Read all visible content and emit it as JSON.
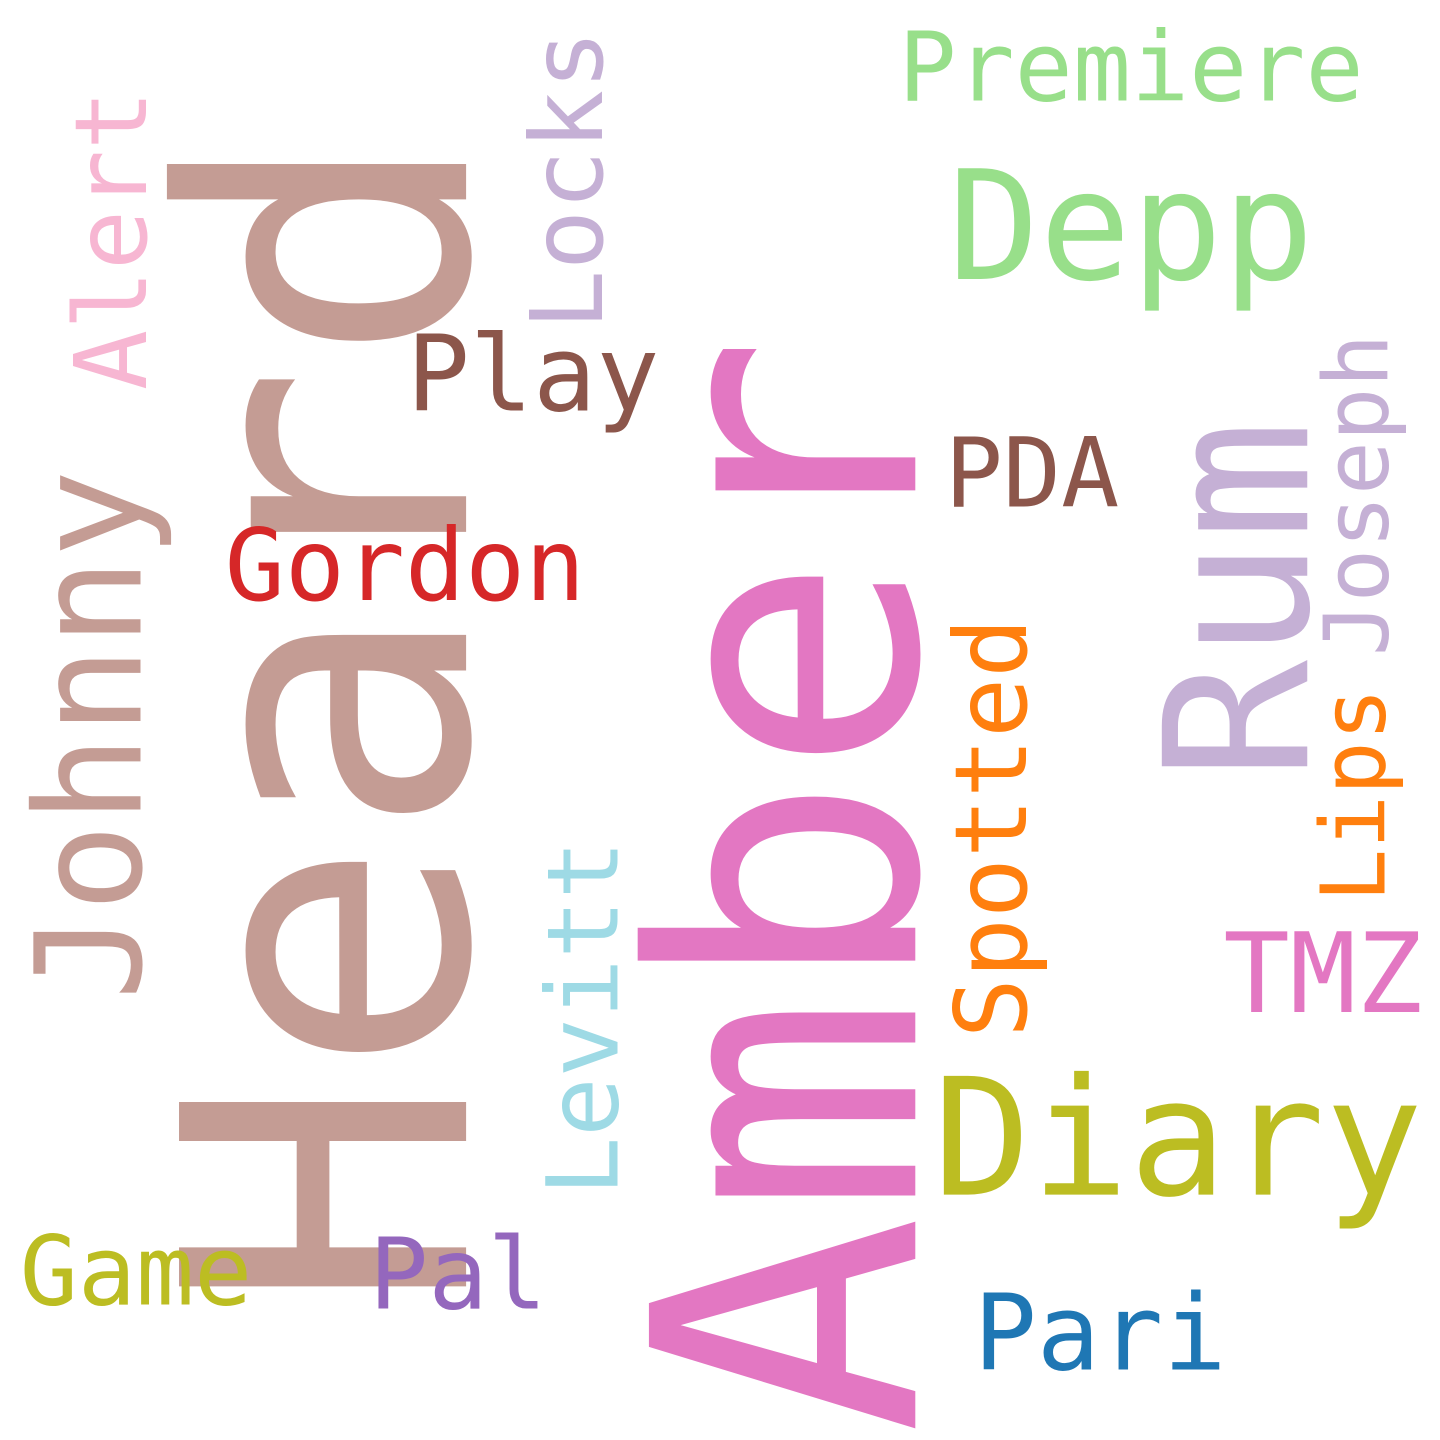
{
  "words": [
    {
      "id": "heard",
      "text": "Heard",
      "color": "#c49c94",
      "orientation": "vertical"
    },
    {
      "id": "amber",
      "text": "Amber",
      "color": "#e377c2",
      "orientation": "vertical"
    },
    {
      "id": "rum",
      "text": "Rum",
      "color": "#c5b0d5",
      "orientation": "vertical"
    },
    {
      "id": "johnny",
      "text": "Johnny",
      "color": "#c49c94",
      "orientation": "vertical"
    },
    {
      "id": "alert",
      "text": "Alert",
      "color": "#f7b6d2",
      "orientation": "vertical"
    },
    {
      "id": "locks",
      "text": "Locks",
      "color": "#c5b0d5",
      "orientation": "vertical"
    },
    {
      "id": "premiere",
      "text": "Premiere",
      "color": "#98df8a",
      "orientation": "horizontal"
    },
    {
      "id": "depp",
      "text": "Depp",
      "color": "#98df8a",
      "orientation": "horizontal"
    },
    {
      "id": "play",
      "text": "Play",
      "color": "#8c564b",
      "orientation": "horizontal"
    },
    {
      "id": "pda",
      "text": "PDA",
      "color": "#8c564b",
      "orientation": "horizontal"
    },
    {
      "id": "joseph",
      "text": "Joseph",
      "color": "#c5b0d5",
      "orientation": "vertical"
    },
    {
      "id": "gordon",
      "text": "Gordon",
      "color": "#d62728",
      "orientation": "horizontal"
    },
    {
      "id": "spotted",
      "text": "Spotted",
      "color": "#ff7f0e",
      "orientation": "vertical"
    },
    {
      "id": "lips",
      "text": "Lips",
      "color": "#ff7f0e",
      "orientation": "vertical"
    },
    {
      "id": "tmz",
      "text": "TMZ",
      "color": "#e377c2",
      "orientation": "horizontal"
    },
    {
      "id": "levitt",
      "text": "Levitt",
      "color": "#9edae5",
      "orientation": "vertical"
    },
    {
      "id": "diary",
      "text": "Diary",
      "color": "#bcbd22",
      "orientation": "horizontal"
    },
    {
      "id": "game",
      "text": "Game",
      "color": "#bcbd22",
      "orientation": "horizontal"
    },
    {
      "id": "pal",
      "text": "Pal",
      "color": "#9467bd",
      "orientation": "horizontal"
    },
    {
      "id": "pari",
      "text": "Pari",
      "color": "#1f77b4",
      "orientation": "horizontal"
    }
  ]
}
